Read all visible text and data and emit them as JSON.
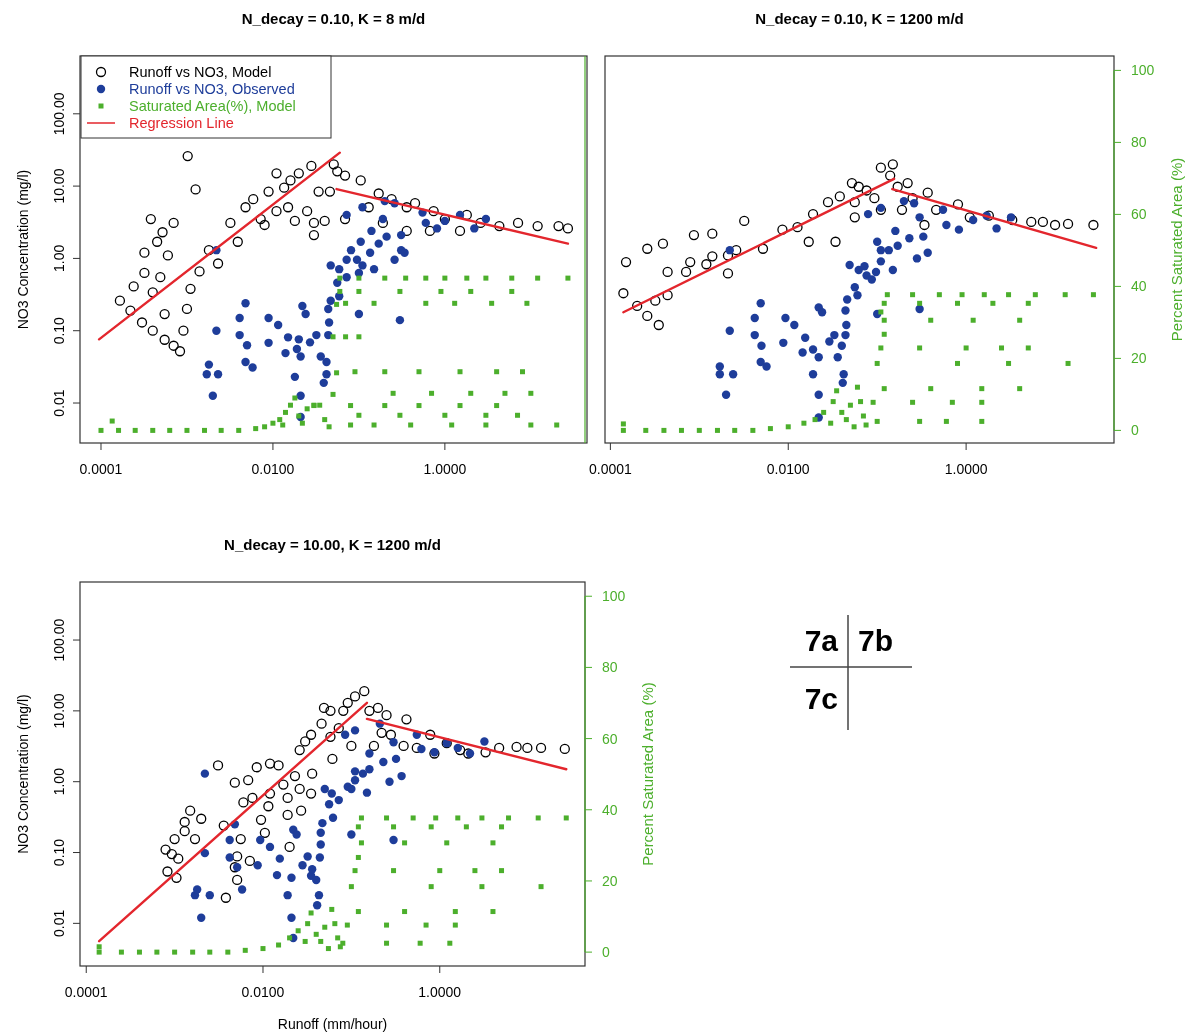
{
  "chart_data": [
    {
      "type": "scatter",
      "title": "N_decay = 0.10, K = 8 m/d",
      "ylabel": "NO3 Concentration (mg/l)",
      "log": "xy",
      "legend": "top left",
      "tick_labels": [
        "x",
        "y"
      ],
      "xlim": [
        5.7e-05,
        45
      ],
      "ylim": [
        0.0028,
        630
      ],
      "y2lim": [
        -3.5,
        104
      ],
      "xticks": [
        {
          "value": 0.0001,
          "label": "0.0001"
        },
        {
          "value": 0.01,
          "label": "0.0100"
        },
        {
          "value": 1,
          "label": "1.0000"
        }
      ],
      "yticks": [
        {
          "value": 0.01,
          "label": "0.01"
        },
        {
          "value": 0.1,
          "label": "0.10"
        },
        {
          "value": 1,
          "label": "1.00"
        },
        {
          "value": 10,
          "label": "10.00"
        },
        {
          "value": 100,
          "label": "100.00"
        }
      ],
      "series": [
        {
          "name": "Runoff vs NO3, Model",
          "type": "scatter",
          "marker": "circle",
          "color": "#000000",
          "x": [
            0.000166,
            0.00022,
            0.0003,
            0.0004,
            0.00055,
            0.0007,
            0.00083,
            0.00102,
            0.00126,
            0.00038,
            0.0007,
            0.00052,
            0.00032,
            0.00045,
            0.0006,
            0.00032,
            0.00049,
            0.00024,
            0.0004,
            0.00055,
            0.00091,
            0.001,
            0.0011,
            0.0014,
            0.0018,
            0.0023,
            0.0032,
            0.0039,
            0.0048,
            0.0059,
            0.0072,
            0.0089,
            0.011,
            0.0135,
            0.016,
            0.02,
            0.008,
            0.011,
            0.015,
            0.018,
            0.028,
            0.025,
            0.034,
            0.046,
            0.03,
            0.03,
            0.051,
            0.056,
            0.069,
            0.105,
            0.13,
            0.17,
            0.24,
            0.19,
            0.36,
            0.45,
            0.67,
            1.0,
            1.5,
            2.6,
            4.3,
            7.1,
            12,
            21,
            27,
            1.8,
            0.74,
            0.36,
            0.069,
            0.04
          ],
          "values": [
            0.26,
            0.19,
            0.13,
            0.1,
            0.075,
            0.062,
            0.052,
            26,
            9,
            3.5,
            3.1,
            2.3,
            1.2,
            1.7,
            1.1,
            0.63,
            0.55,
            0.41,
            0.34,
            0.17,
            0.1,
            0.2,
            0.38,
            0.66,
            1.3,
            0.85,
            3.1,
            1.7,
            5.1,
            6.6,
            3.5,
            8.4,
            15,
            9.5,
            12,
            15,
            2.9,
            4.5,
            5.1,
            3.3,
            19,
            4.5,
            8.4,
            8.4,
            3.1,
            2.1,
            20,
            16,
            3.5,
            12,
            5.1,
            7.9,
            6.6,
            3.1,
            5.1,
            5.8,
            2.4,
            3.5,
            2.4,
            3.1,
            2.8,
            3.1,
            2.8,
            2.8,
            2.6,
            4,
            4.5,
            2.4,
            14,
            3.3
          ]
        },
        {
          "name": "Runoff vs NO3, Observed",
          "type": "scatter",
          "marker": "circle",
          "color": "#1e3d9a",
          "x": [
            0.0022,
            0.0017,
            0.0018,
            0.002,
            0.0022,
            0.0023,
            0.0041,
            0.0041,
            0.0048,
            0.005,
            0.0048,
            0.0058,
            0.0089,
            0.0089,
            0.0115,
            0.014,
            0.015,
            0.019,
            0.02,
            0.018,
            0.021,
            0.022,
            0.024,
            0.021,
            0.021,
            0.027,
            0.032,
            0.036,
            0.042,
            0.039,
            0.042,
            0.044,
            0.045,
            0.044,
            0.047,
            0.047,
            0.056,
            0.059,
            0.059,
            0.072,
            0.072,
            0.081,
            0.095,
            0.1,
            0.105,
            0.11,
            0.1,
            0.135,
            0.15,
            0.17,
            0.14,
            0.21,
            0.26,
            0.31,
            0.31,
            0.3,
            0.34,
            0.072,
            0.11,
            0.19,
            0.2,
            0.26,
            0.55,
            0.6,
            0.81,
            1,
            1.5,
            2.2,
            3
          ],
          "values": [
            1.3,
            0.025,
            0.034,
            0.0126,
            0.1,
            0.025,
            0.15,
            0.087,
            0.24,
            0.063,
            0.037,
            0.031,
            0.15,
            0.068,
            0.12,
            0.049,
            0.081,
            0.056,
            0.076,
            0.023,
            0.0126,
            0.22,
            0.17,
            0.044,
            0.0064,
            0.069,
            0.087,
            0.044,
            0.037,
            0.019,
            0.025,
            0.087,
            0.13,
            0.2,
            0.26,
            0.8,
            0.46,
            0.71,
            0.3,
            0.96,
            0.55,
            1.3,
            0.96,
            0.63,
            1.7,
            0.8,
            0.17,
            1.2,
            0.71,
            1.6,
            2.4,
            2,
            0.96,
            1.3,
            2.1,
            0.14,
            1.2,
            4,
            5.1,
            3.5,
            6.2,
            5.8,
            4.3,
            3.1,
            2.6,
            3.3,
            4,
            2.6,
            3.5
          ]
        },
        {
          "name": "Saturated Area(%), Model",
          "type": "scatter",
          "marker": "square",
          "axis": "y2",
          "color": "#4caf2c",
          "x": [
            0.0001,
            0.00016,
            0.00025,
            0.0004,
            0.00063,
            0.001,
            0.0016,
            0.0025,
            0.004,
            0.0063,
            0.008,
            0.01,
            0.012,
            0.014,
            0.016,
            0.018,
            0.013,
            0.02,
            0.022,
            0.025,
            0.03,
            0.035,
            0.04,
            0.045,
            0.05,
            0.055,
            0.05,
            0.055,
            0.06,
            0.06,
            0.000135,
            0.1,
            0.2,
            0.35,
            0.6,
            1,
            1.8,
            3,
            6,
            12,
            27,
            0.1,
            0.3,
            0.9,
            2,
            6,
            0.07,
            0.15,
            0.6,
            1.3,
            3.5,
            9,
            0.07,
            0.1,
            0.09,
            0.2,
            0.5,
            1.5,
            4,
            8,
            0.25,
            0.7,
            2,
            5,
            10,
            0.03,
            0.08,
            0.2,
            0.5,
            1.5,
            4,
            0.1,
            0.3,
            1,
            3,
            7,
            0.08,
            0.15,
            0.4,
            1.2,
            3,
            10,
            20
          ],
          "values": [
            0,
            0,
            0,
            0,
            0,
            0,
            0,
            0,
            0,
            0.5,
            1,
            2,
            3,
            5,
            7,
            9,
            1.5,
            4,
            2,
            6,
            7,
            7,
            3,
            1,
            10,
            16,
            26,
            35,
            38.6,
            42.3,
            2.6,
            42.3,
            42.3,
            42.3,
            42.3,
            42.3,
            42.3,
            42.3,
            42.3,
            42.3,
            42.3,
            38.6,
            38.6,
            38.6,
            38.6,
            38.6,
            35.3,
            35.3,
            35.3,
            35.3,
            35.3,
            35.3,
            26,
            26,
            16.3,
            16.3,
            16.3,
            16.3,
            16.3,
            16.3,
            10.3,
            10.3,
            10.3,
            10.3,
            10.3,
            6.9,
            6.9,
            6.9,
            6.9,
            6.9,
            6.9,
            4.2,
            4.2,
            4.2,
            4.2,
            4.2,
            1.5,
            1.5,
            1.5,
            1.5,
            1.5,
            1.5,
            1.5
          ]
        },
        {
          "name": "Regression Line",
          "type": "line",
          "marker": "none",
          "line_style": "solid",
          "color": "#e3262d",
          "x": [
            9.5e-05,
            0.06
          ],
          "values": [
            0.076,
            29
          ]
        },
        {
          "type": "line",
          "marker": "none",
          "line_style": "solid",
          "color": "#e3262d",
          "x": [
            0.055,
            27
          ],
          "values": [
            9.1,
            1.6
          ]
        }
      ]
    },
    {
      "type": "scatter",
      "title": "N_decay = 0.10, K = 1200 m/d",
      "y2label": "Percent Saturated Area (%)",
      "log": "xy",
      "tick_labels": [
        "x",
        "y2"
      ],
      "xlim": [
        8.7e-05,
        46
      ],
      "ylim": [
        0.0028,
        630
      ],
      "y2lim": [
        -3.5,
        104
      ],
      "xticks": [
        {
          "value": 0.0001,
          "label": "0.0001"
        },
        {
          "value": 0.01,
          "label": "0.0100"
        },
        {
          "value": 1,
          "label": "1.0000"
        }
      ],
      "y2ticks": [
        0,
        20,
        40,
        60,
        80,
        100
      ],
      "series": [
        {
          "type": "scatter",
          "marker": "circle",
          "color": "#000000",
          "x": [
            0.00014,
            0.0002,
            0.00026,
            0.00035,
            0.00032,
            0.00015,
            0.00026,
            0.00039,
            0.00087,
            0.0014,
            0.0032,
            0.00044,
            0.00079,
            0.0014,
            0.0026,
            0.0052,
            0.0086,
            0.0127,
            0.019,
            0.028,
            0.038,
            0.052,
            0.062,
            0.056,
            0.056,
            0.076,
            0.11,
            0.15,
            0.14,
            0.093,
            0.11,
            0.17,
            0.22,
            0.19,
            0.25,
            0.37,
            0.34,
            0.46,
            0.81,
            1.1,
            1.8,
            3.3,
            5.4,
            7.3,
            10,
            14,
            27,
            0.00044,
            0.00071,
            0.0012,
            0.0021,
            0.017,
            0.034,
            0.0021
          ],
          "values": [
            0.33,
            0.22,
            0.16,
            0.12,
            0.26,
            0.89,
            1.36,
            1.6,
            2.1,
            2.2,
            3.3,
            0.65,
            0.89,
            1.07,
            1.3,
            1.36,
            2.5,
            2.7,
            4.1,
            6,
            7.2,
            11,
            9.8,
            6,
            3.7,
            8.7,
            18,
            20,
            14,
            6.8,
            4.7,
            9.8,
            11,
            4.7,
            6.8,
            8.1,
            2.9,
            4.7,
            5.6,
            3.7,
            3.9,
            3.4,
            3.2,
            3.2,
            2.9,
            3,
            2.9,
            0.31,
            0.65,
            0.83,
            1.1,
            1.7,
            1.7,
            0.62
          ]
        },
        {
          "type": "scatter",
          "marker": "circle",
          "color": "#1e3d9a",
          "x": [
            0.0022,
            0.0017,
            0.0017,
            0.002,
            0.0022,
            0.0024,
            0.0042,
            0.0042,
            0.0049,
            0.005,
            0.0049,
            0.0057,
            0.0093,
            0.0088,
            0.0117,
            0.0145,
            0.0155,
            0.019,
            0.019,
            0.022,
            0.022,
            0.022,
            0.024,
            0.022,
            0.029,
            0.033,
            0.036,
            0.04,
            0.042,
            0.041,
            0.044,
            0.045,
            0.044,
            0.046,
            0.049,
            0.056,
            0.062,
            0.06,
            0.072,
            0.076,
            0.087,
            0.097,
            0.1,
            0.11,
            0.11,
            0.1,
            0.135,
            0.15,
            0.16,
            0.17,
            0.23,
            0.28,
            0.3,
            0.33,
            0.37,
            0.079,
            0.11,
            0.2,
            0.26,
            0.3,
            0.55,
            0.6,
            0.83,
            1.2,
            1.7,
            2.2,
            3.2
          ],
          "values": [
            1.3,
            0.025,
            0.032,
            0.013,
            0.1,
            0.025,
            0.15,
            0.087,
            0.24,
            0.062,
            0.037,
            0.032,
            0.15,
            0.068,
            0.12,
            0.05,
            0.08,
            0.025,
            0.055,
            0.013,
            0.0063,
            0.21,
            0.18,
            0.043,
            0.071,
            0.087,
            0.043,
            0.062,
            0.025,
            0.019,
            0.087,
            0.12,
            0.19,
            0.27,
            0.81,
            0.4,
            0.69,
            0.31,
            0.78,
            0.58,
            0.51,
            0.65,
            0.17,
            0.91,
            1.3,
            1.7,
            1.3,
            0.69,
            2.4,
            1.5,
            1.9,
            1,
            0.2,
            2,
            1.2,
            4.1,
            5,
            6.2,
            5.8,
            3.7,
            4.7,
            2.9,
            2.5,
            3.4,
            3.9,
            2.6,
            3.7
          ]
        },
        {
          "type": "scatter",
          "marker": "square",
          "axis": "y2",
          "color": "#4caf2c",
          "x": [
            0.00014,
            0.00025,
            0.0004,
            0.00063,
            0.001,
            0.0016,
            0.0025,
            0.004,
            0.0063,
            0.01,
            0.015,
            0.02,
            0.025,
            0.03,
            0.032,
            0.035,
            0.04,
            0.045,
            0.05,
            0.055,
            0.06,
            0.065,
            0.07,
            0.075,
            0.00014,
            0.13,
            0.25,
            0.5,
            0.9,
            1.6,
            3,
            6,
            13,
            27,
            0.12,
            0.3,
            0.8,
            2,
            5,
            0.11,
            0.12,
            0.4,
            1.2,
            4,
            0.12,
            0.11,
            0.3,
            1,
            2.5,
            5,
            0.1,
            0.8,
            3,
            14,
            0.12,
            0.4,
            1.5,
            4,
            0.09,
            0.25,
            0.7,
            1.5,
            0.1,
            0.3,
            0.6,
            1.5
          ],
          "values": [
            0,
            0,
            0,
            0,
            0,
            0,
            0,
            0,
            0.5,
            1,
            2,
            3,
            5,
            2,
            8,
            11,
            5,
            3,
            7,
            1,
            12,
            8,
            4,
            1.5,
            1.8,
            37.7,
            37.7,
            37.7,
            37.7,
            37.7,
            37.7,
            37.7,
            37.7,
            37.7,
            35.3,
            35.3,
            35.3,
            35.3,
            35.3,
            32.9,
            30.6,
            30.6,
            30.6,
            30.6,
            26.7,
            22.9,
            22.9,
            22.9,
            22.9,
            22.9,
            18.6,
            18.6,
            18.6,
            18.6,
            11.6,
            11.6,
            11.6,
            11.6,
            7.8,
            7.8,
            7.8,
            7.8,
            2.5,
            2.5,
            2.5,
            2.5
          ]
        },
        {
          "type": "line",
          "marker": "none",
          "line_style": "solid",
          "color": "#e3262d",
          "x": [
            0.00014,
            0.155
          ],
          "values": [
            0.18,
            12.6
          ]
        },
        {
          "type": "line",
          "marker": "none",
          "line_style": "solid",
          "color": "#e3262d",
          "x": [
            0.148,
            29
          ],
          "values": [
            9.1,
            1.4
          ]
        }
      ]
    },
    {
      "type": "scatter",
      "title": "N_decay = 10.00, K = 1200 m/d",
      "xlabel": "Runoff (mm/hour)",
      "ylabel": "NO3 Concentration (mg/l)",
      "y2label": "Percent Saturated Area (%)",
      "log": "xy",
      "xlim": [
        8.5e-05,
        44
      ],
      "ylim": [
        0.0025,
        660
      ],
      "y2lim": [
        -3.9,
        104
      ],
      "xticks": [
        {
          "value": 0.0001,
          "label": "0.0001"
        },
        {
          "value": 0.01,
          "label": "0.0100"
        },
        {
          "value": 1,
          "label": "1.0000"
        }
      ],
      "yticks": [
        {
          "value": 0.01,
          "label": "0.01"
        },
        {
          "value": 0.1,
          "label": "0.10"
        },
        {
          "value": 1,
          "label": "1.00"
        },
        {
          "value": 10,
          "label": "10.00"
        },
        {
          "value": 100,
          "label": "100.00"
        }
      ],
      "y2ticks": [
        0,
        20,
        40,
        60,
        80,
        100
      ],
      "series": [
        {
          "type": "scatter",
          "marker": "circle",
          "color": "#000000",
          "x": [
            0.00079,
            0.00093,
            0.00083,
            0.00105,
            0.001,
            0.0013,
            0.0013,
            0.0015,
            0.002,
            0.0017,
            0.0011,
            0.0031,
            0.0038,
            0.0036,
            0.0048,
            0.0051,
            0.0051,
            0.0048,
            0.006,
            0.0056,
            0.0071,
            0.0076,
            0.0095,
            0.0105,
            0.0115,
            0.012,
            0.0068,
            0.0085,
            0.012,
            0.015,
            0.017,
            0.019,
            0.019,
            0.02,
            0.027,
            0.023,
            0.026,
            0.03,
            0.035,
            0.026,
            0.036,
            0.035,
            0.049,
            0.046,
            0.058,
            0.058,
            0.061,
            0.072,
            0.081,
            0.091,
            0.11,
            0.14,
            0.1,
            0.16,
            0.2,
            0.25,
            0.22,
            0.18,
            0.28,
            0.42,
            0.39,
            0.55,
            0.78,
            0.87,
            1.2,
            1.7,
            2.1,
            3.3,
            4.7,
            7.4,
            9.8,
            14,
            26
          ],
          "values": [
            0.11,
            0.095,
            0.054,
            0.044,
            0.155,
            0.27,
            0.2,
            0.39,
            0.3,
            0.155,
            0.082,
            1.7,
            0.023,
            0.24,
            0.062,
            0.041,
            0.088,
            0.97,
            0.51,
            0.155,
            0.076,
            0.59,
            0.29,
            0.19,
            0.45,
            0.68,
            1.05,
            1.6,
            1.8,
            1.7,
            0.91,
            0.59,
            0.34,
            0.12,
            0.39,
            1.2,
            2.8,
            3.7,
            4.6,
            0.79,
            1.3,
            0.68,
            11,
            6.6,
            10,
            4.3,
            2.1,
            5.7,
            10,
            13,
            16,
            19,
            3.2,
            10,
            11,
            8.7,
            4.9,
            3.2,
            4.6,
            7.6,
            3.2,
            3,
            4.6,
            2.5,
            3.5,
            2.8,
            2.5,
            2.6,
            3,
            3.1,
            3,
            3,
            2.9
          ]
        },
        {
          "type": "scatter",
          "marker": "circle",
          "color": "#1e3d9a",
          "x": [
            0.0022,
            0.0017,
            0.0018,
            0.002,
            0.0022,
            0.0025,
            0.0042,
            0.0042,
            0.0048,
            0.0051,
            0.0058,
            0.0093,
            0.0087,
            0.012,
            0.0144,
            0.0155,
            0.019,
            0.021,
            0.021,
            0.022,
            0.022,
            0.024,
            0.028,
            0.032,
            0.035,
            0.036,
            0.04,
            0.043,
            0.041,
            0.044,
            0.045,
            0.045,
            0.047,
            0.05,
            0.056,
            0.06,
            0.062,
            0.072,
            0.091,
            0.1,
            0.1,
            0.11,
            0.11,
            0.135,
            0.15,
            0.16,
            0.23,
            0.27,
            0.3,
            0.32,
            0.37,
            0.085,
            0.11,
            0.16,
            0.21,
            0.3,
            0.55,
            0.62,
            0.87,
            1.2,
            1.6,
            2.2,
            3.2
          ],
          "values": [
            1.3,
            0.025,
            0.03,
            0.012,
            0.098,
            0.025,
            0.15,
            0.085,
            0.25,
            0.062,
            0.03,
            0.15,
            0.066,
            0.12,
            0.048,
            0.082,
            0.025,
            0.044,
            0.012,
            0.0062,
            0.21,
            0.18,
            0.066,
            0.088,
            0.047,
            0.058,
            0.041,
            0.025,
            0.018,
            0.085,
            0.13,
            0.19,
            0.26,
            0.79,
            0.48,
            0.68,
            0.31,
            0.55,
            0.85,
            0.79,
            0.18,
            1.05,
            1.4,
            1.3,
            0.7,
            1.5,
            1.9,
            1.0,
            0.15,
            2.1,
            1.2,
            4.6,
            5.3,
            2.5,
            6.6,
            3.6,
            4.6,
            2.9,
            2.6,
            3.5,
            3,
            2.5,
            3.7
          ]
        },
        {
          "type": "scatter",
          "marker": "square",
          "axis": "y2",
          "color": "#4caf2c",
          "x": [
            0.00014,
            0.00025,
            0.0004,
            0.00063,
            0.001,
            0.0016,
            0.0025,
            0.004,
            0.0063,
            0.01,
            0.015,
            0.02,
            0.025,
            0.03,
            0.032,
            0.035,
            0.04,
            0.045,
            0.05,
            0.055,
            0.06,
            0.065,
            0.07,
            0.075,
            0.00014,
            0.13,
            0.25,
            0.5,
            0.9,
            1.6,
            3,
            6,
            13,
            27,
            0.12,
            0.3,
            0.8,
            2,
            5,
            0.13,
            0.4,
            1.2,
            4,
            0.12,
            0.11,
            0.3,
            1,
            2.5,
            5,
            0.1,
            0.8,
            3,
            14,
            0.12,
            0.4,
            1.5,
            4,
            0.09,
            0.25,
            0.7,
            1.5,
            0.08,
            0.25,
            0.6,
            1.3
          ],
          "values": [
            0,
            0,
            0,
            0,
            0,
            0,
            0,
            0,
            0.5,
            1,
            2,
            4,
            6,
            3,
            8,
            11,
            5,
            3,
            7,
            1,
            12,
            8,
            4,
            1.5,
            1.5,
            37.7,
            37.7,
            37.7,
            37.7,
            37.7,
            37.7,
            37.7,
            37.7,
            37.7,
            35.2,
            35.2,
            35.2,
            35.2,
            35.2,
            30.7,
            30.7,
            30.7,
            30.7,
            26.6,
            22.9,
            22.9,
            22.9,
            22.9,
            22.9,
            18.4,
            18.4,
            18.4,
            18.4,
            11.4,
            11.4,
            11.4,
            11.4,
            7.6,
            7.6,
            7.6,
            7.6,
            2.5,
            2.5,
            2.5,
            2.5
          ]
        },
        {
          "type": "line",
          "marker": "none",
          "line_style": "solid",
          "color": "#e3262d",
          "x": [
            0.00014,
            0.15
          ],
          "values": [
            0.0056,
            13
          ]
        },
        {
          "type": "line",
          "marker": "none",
          "line_style": "solid",
          "color": "#e3262d",
          "x": [
            0.15,
            27
          ],
          "values": [
            7.7,
            1.5
          ]
        }
      ]
    },
    {
      "type": "other",
      "annotations": [
        "7a",
        "7b",
        "7c"
      ]
    }
  ]
}
